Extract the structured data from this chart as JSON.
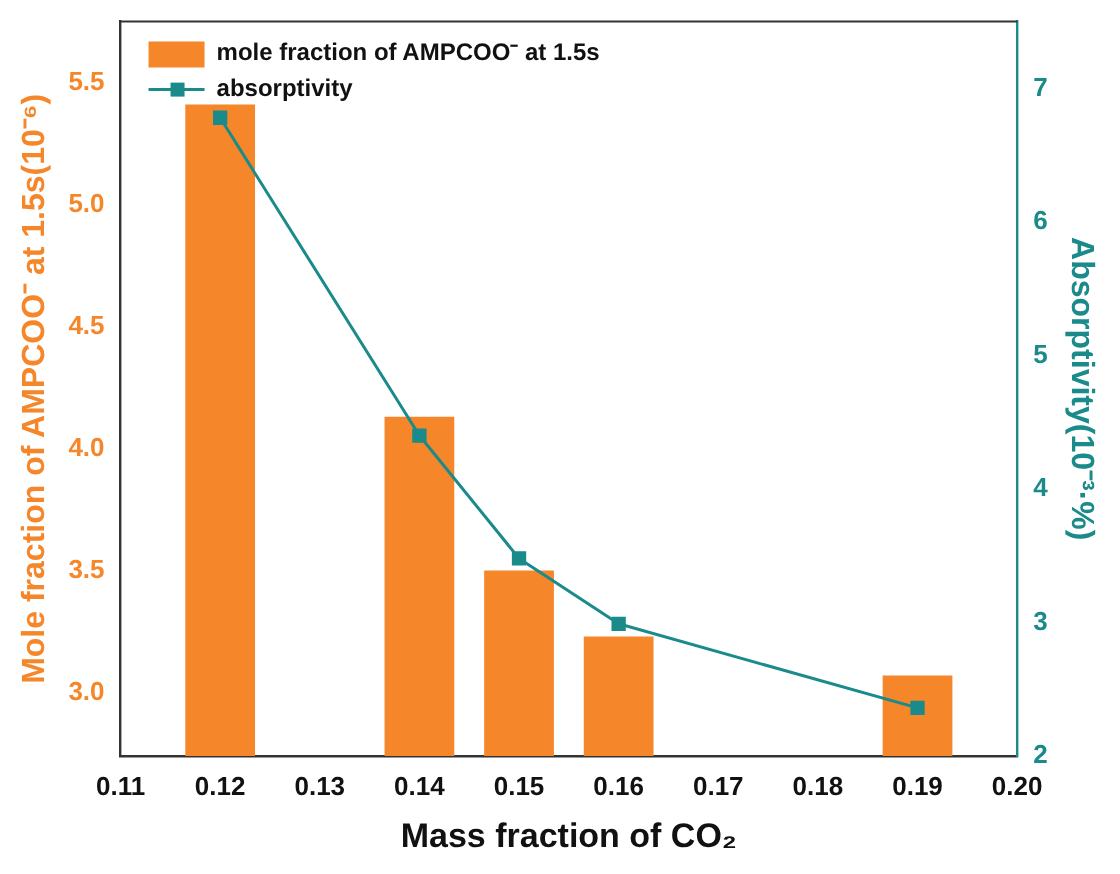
{
  "chart_data": {
    "type": "bar",
    "xlabel": "Mass fraction of CO₂",
    "ylabel": "Mole fraction of AMPCOO⁻ at 1.5s(10⁻⁶)",
    "y2label": "Absorptivity(10⁻³·%)",
    "x": [
      0.12,
      0.14,
      0.15,
      0.16,
      0.19
    ],
    "series": [
      {
        "name": "mole fraction of AMPCOO⁻ at 1.5s",
        "color": "#f5862a",
        "values": [
          5.41,
          4.13,
          3.5,
          3.23,
          3.07
        ]
      },
      {
        "name": "absorptivity",
        "type": "line",
        "axis": "y2",
        "color": "#1a8a8a",
        "marker": "square",
        "values": [
          6.78,
          4.4,
          3.48,
          2.99,
          2.36
        ]
      }
    ],
    "xlim": [
      0.11,
      0.2
    ],
    "xticks": [
      0.11,
      0.12,
      0.13,
      0.14,
      0.15,
      0.16,
      0.17,
      0.18,
      0.19,
      {
        "value": 0.2,
        "label": "0.20"
      }
    ],
    "ylim": [
      2.74,
      5.75
    ],
    "yticks": [
      {
        "value": 3,
        "label": "3.0"
      },
      3.5,
      {
        "value": 4,
        "label": "4.0"
      },
      4.5,
      {
        "value": 5,
        "label": "5.0"
      },
      5.5
    ],
    "y2lim": [
      2,
      7.5
    ],
    "y2ticks": [
      2,
      3,
      4,
      5,
      6,
      7
    ],
    "legend": "top left",
    "grid": false
  }
}
